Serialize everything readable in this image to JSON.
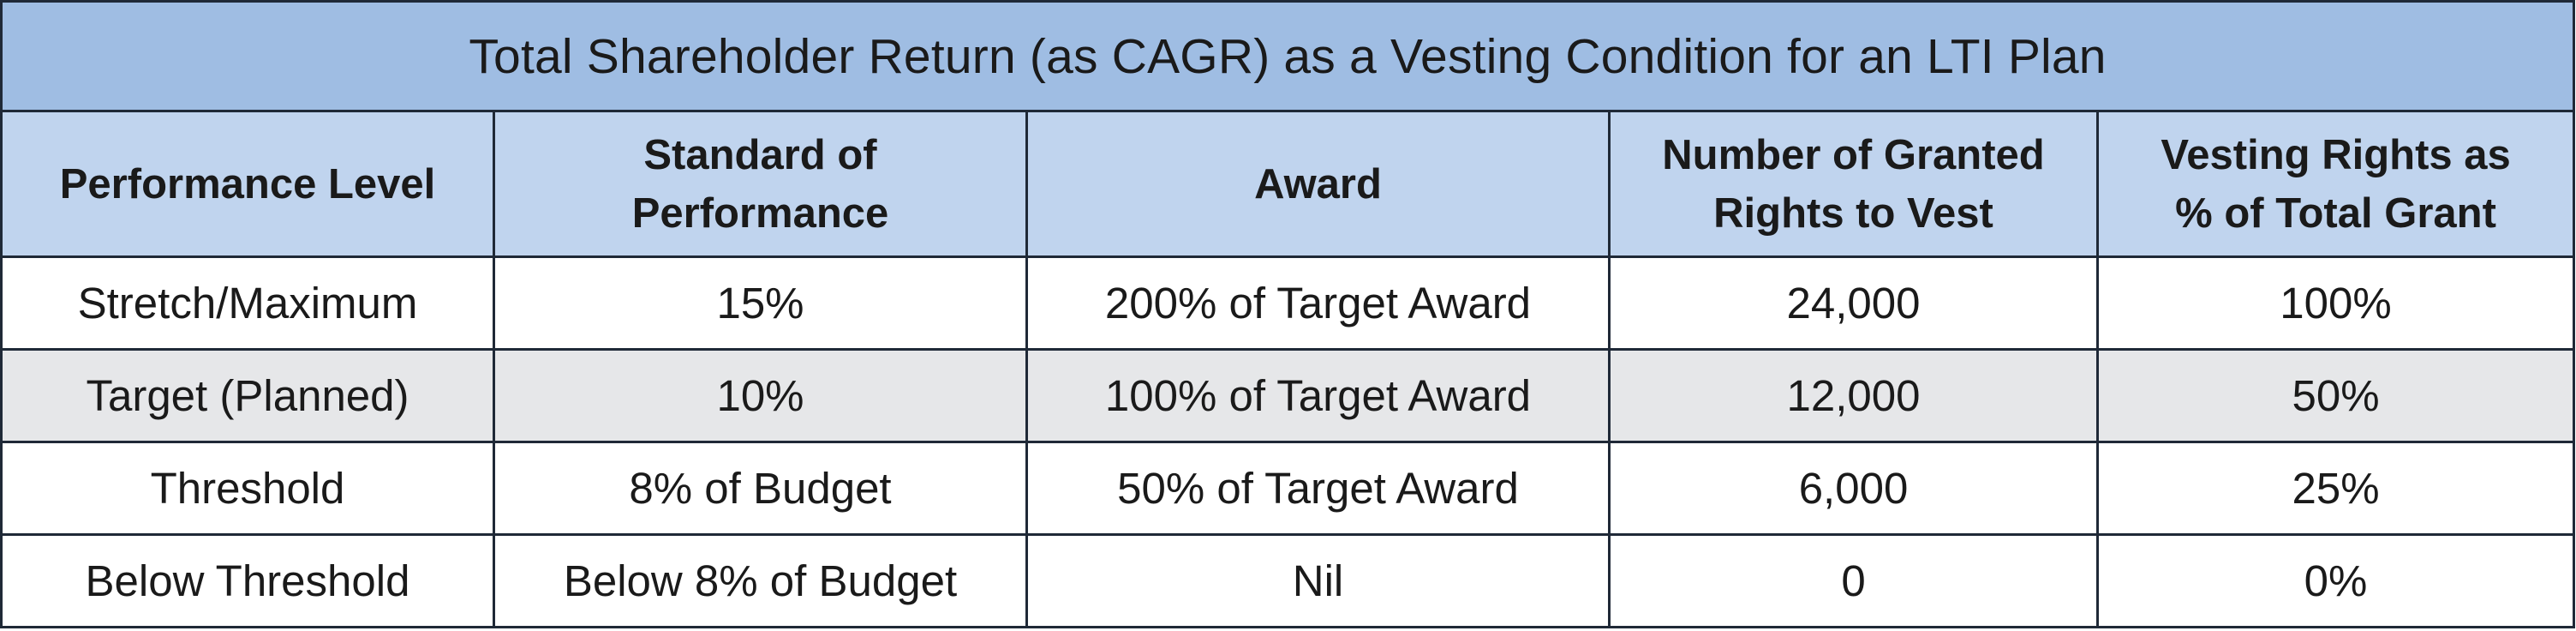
{
  "table": {
    "title": "Total Shareholder Return (as CAGR) as a Vesting Condition for an LTI Plan",
    "headers": [
      [
        "Performance Level"
      ],
      [
        "Standard of",
        "Performance"
      ],
      [
        "Award"
      ],
      [
        "Number of Granted",
        "Rights to Vest"
      ],
      [
        "Vesting Rights as",
        "% of Total Grant"
      ]
    ],
    "rows": [
      [
        "Stretch/Maximum",
        "15%",
        "200% of Target Award",
        "24,000",
        "100%"
      ],
      [
        "Target (Planned)",
        "10%",
        "100% of Target Award",
        "12,000",
        "50%"
      ],
      [
        "Threshold",
        "8% of Budget",
        "50% of Target Award",
        "6,000",
        "25%"
      ],
      [
        "Below Threshold",
        "Below 8% of Budget",
        "Nil",
        "0",
        "0%"
      ]
    ]
  },
  "colors": {
    "title_bg": "#9fbde3",
    "header_bg": "#c0d4ee",
    "row_alt_bg": "#e6e7e9",
    "border": "#1f2937"
  }
}
